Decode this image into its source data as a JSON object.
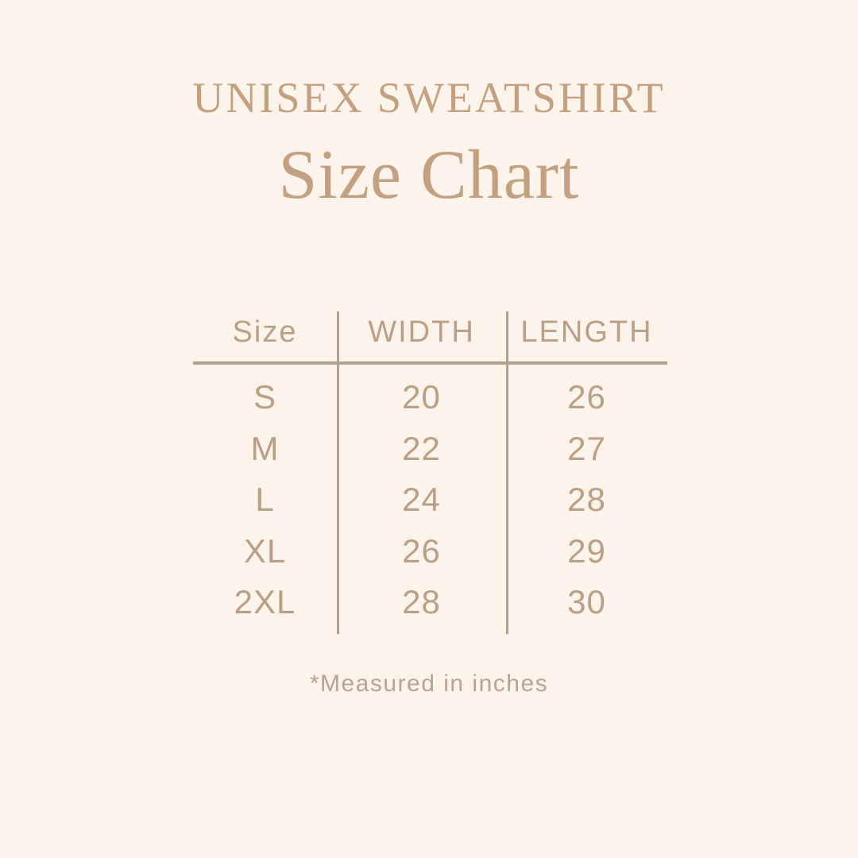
{
  "page": {
    "colors": {
      "background": "#fcf3ea",
      "accent": "#c2a183",
      "table_text": "#b89f87",
      "line": "#b3a190",
      "footnote": "#b5a394"
    }
  },
  "header": {
    "title": "UNISEX SWEATSHIRT",
    "subtitle": "Size Chart"
  },
  "chart_data": {
    "type": "table",
    "title": "Unisex Sweatshirt Size Chart",
    "columns": [
      "Size",
      "WIDTH",
      "LENGTH"
    ],
    "rows": [
      [
        "S",
        "20",
        "26"
      ],
      [
        "M",
        "22",
        "27"
      ],
      [
        "L",
        "24",
        "28"
      ],
      [
        "XL",
        "26",
        "29"
      ],
      [
        "2XL",
        "28",
        "30"
      ]
    ],
    "units": "inches"
  },
  "footnote": "*Measured in inches"
}
